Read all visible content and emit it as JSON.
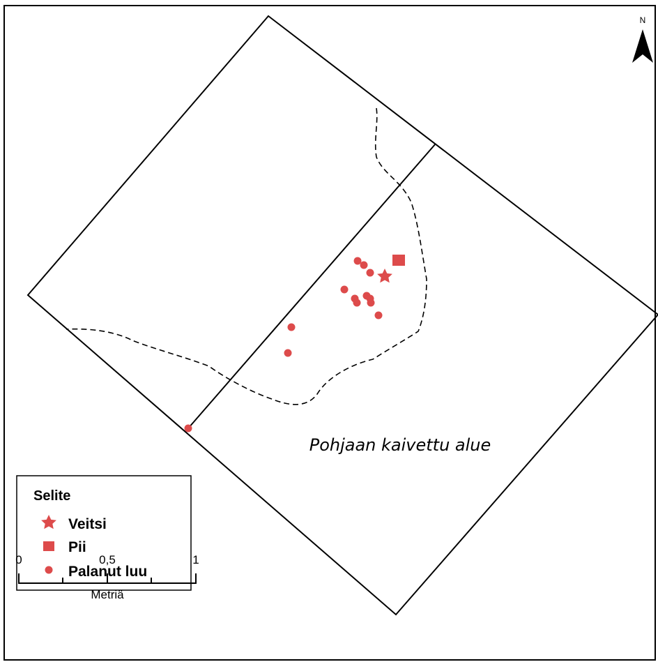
{
  "north_arrow": {
    "label": "N",
    "icon": "north-arrow-icon"
  },
  "area_label": "Pohjaan kaivettu alue",
  "legend": {
    "title": "Selite",
    "items": [
      {
        "label": "Veitsi",
        "symbol": "star"
      },
      {
        "label": "Pii",
        "symbol": "square"
      },
      {
        "label": "Palanut luu",
        "symbol": "dot"
      }
    ]
  },
  "scale_bar": {
    "tick_labels": [
      "0",
      "0,5",
      "1"
    ],
    "unit": "Metriä"
  },
  "colors": {
    "find": "#dd4b4b",
    "outline": "#000000"
  }
}
